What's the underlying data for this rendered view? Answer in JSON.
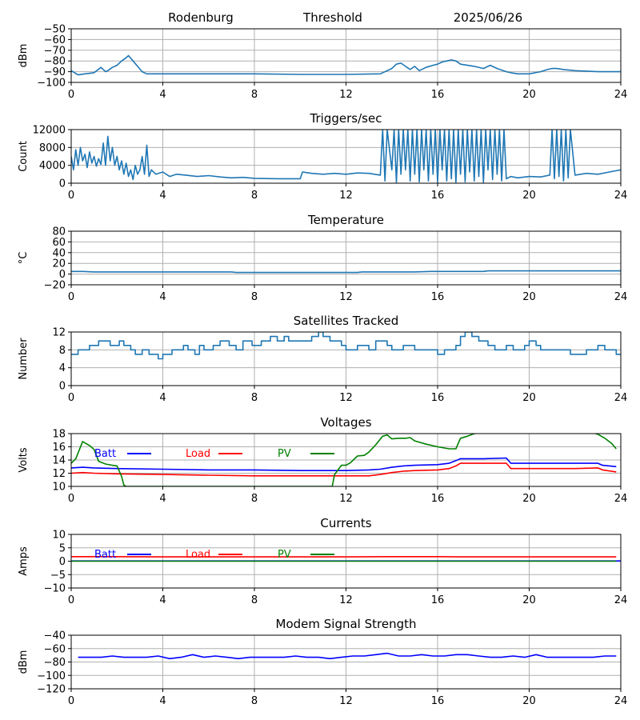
{
  "header": {
    "station": "Rodenburg",
    "subject": "Threshold",
    "date": "2025/06/26"
  },
  "chart_data": [
    {
      "type": "line",
      "id": "threshold",
      "title": "",
      "ylabel": "dBm",
      "xlim": [
        0,
        24
      ],
      "ylim": [
        -100,
        -50
      ],
      "xticks": [
        0,
        4,
        8,
        12,
        16,
        20,
        24
      ],
      "yticks": [
        -100,
        -90,
        -80,
        -70,
        -60,
        -50
      ],
      "grid": true,
      "series": [
        {
          "color": "#1f77b4",
          "x": [
            0,
            0.3,
            0.6,
            1,
            1.3,
            1.5,
            1.6,
            1.8,
            2,
            2.2,
            2.4,
            2.5,
            2.7,
            2.9,
            3.1,
            3.3,
            4,
            6,
            8,
            10,
            12,
            13.5,
            14,
            14.2,
            14.4,
            14.6,
            14.8,
            15,
            15.2,
            15.5,
            15.8,
            16,
            16.2,
            16.4,
            16.6,
            16.8,
            17,
            17.3,
            17.6,
            18,
            18.3,
            18.6,
            19,
            19.2,
            19.5,
            20,
            20.5,
            20.8,
            21,
            21.2,
            21.5,
            22,
            23,
            24
          ],
          "y": [
            -89,
            -93,
            -92,
            -91,
            -86,
            -90,
            -89,
            -86,
            -84,
            -80,
            -77,
            -75,
            -80,
            -85,
            -90,
            -92,
            -92,
            -92,
            -92,
            -92.5,
            -92.5,
            -92,
            -87,
            -83,
            -82,
            -85,
            -88,
            -85,
            -89,
            -86,
            -84,
            -83,
            -81,
            -80,
            -79,
            -80,
            -83,
            -84,
            -85,
            -87,
            -84,
            -87,
            -90,
            -91,
            -92,
            -92,
            -90,
            -88,
            -87,
            -87,
            -88,
            -89,
            -90,
            -90
          ]
        }
      ]
    },
    {
      "type": "line",
      "id": "triggers",
      "title": "Triggers/sec",
      "ylabel": "Count",
      "xlim": [
        0,
        24
      ],
      "ylim": [
        0,
        12000
      ],
      "xticks": [
        0,
        4,
        8,
        12,
        16,
        20,
        24
      ],
      "yticks": [
        0,
        4000,
        8000,
        12000
      ],
      "grid": true,
      "series": [
        {
          "color": "#1f77b4",
          "x": [
            0,
            0.1,
            0.2,
            0.3,
            0.4,
            0.5,
            0.6,
            0.7,
            0.8,
            0.9,
            1,
            1.1,
            1.2,
            1.3,
            1.4,
            1.5,
            1.6,
            1.7,
            1.8,
            1.9,
            2,
            2.1,
            2.2,
            2.3,
            2.4,
            2.5,
            2.6,
            2.7,
            2.8,
            2.9,
            3,
            3.1,
            3.2,
            3.3,
            3.4,
            3.5,
            3.7,
            4,
            4.3,
            4.6,
            5,
            5.5,
            6,
            6.5,
            7,
            7.5,
            8,
            9,
            10,
            10.1,
            10.5,
            11,
            11.5,
            12,
            12.5,
            13,
            13.5,
            13.6,
            13.7,
            13.8,
            14,
            14.1,
            14.2,
            14.3,
            14.4,
            14.5,
            14.6,
            14.7,
            14.8,
            14.9,
            15,
            15.1,
            15.2,
            15.3,
            15.4,
            15.5,
            15.6,
            15.7,
            15.8,
            15.9,
            16,
            16.1,
            16.2,
            16.3,
            16.4,
            16.5,
            16.6,
            16.7,
            16.8,
            16.9,
            17,
            17.1,
            17.2,
            17.3,
            17.4,
            17.5,
            17.6,
            17.7,
            17.8,
            17.9,
            18,
            18.1,
            18.2,
            18.3,
            18.4,
            18.5,
            18.6,
            18.7,
            18.8,
            18.9,
            19,
            19.2,
            19.5,
            20,
            20.5,
            20.9,
            21,
            21.1,
            21.2,
            21.3,
            21.4,
            21.5,
            21.6,
            21.7,
            21.8,
            22,
            22.5,
            23,
            23.5,
            23.8,
            24
          ],
          "y": [
            6000,
            3000,
            7500,
            4000,
            8000,
            5000,
            6500,
            3500,
            7000,
            4500,
            6000,
            3800,
            5500,
            4200,
            9000,
            4000,
            10500,
            5000,
            8000,
            4000,
            6000,
            3000,
            5000,
            2000,
            4500,
            1500,
            3000,
            800,
            4000,
            2000,
            3000,
            6000,
            2000,
            8500,
            1500,
            3000,
            2000,
            2500,
            1500,
            2000,
            1800,
            1500,
            1700,
            1400,
            1200,
            1300,
            1100,
            1000,
            1000,
            2500,
            2200,
            2000,
            2200,
            2000,
            2300,
            2200,
            1800,
            12000,
            500,
            12000,
            3000,
            12000,
            200,
            12000,
            2000,
            12000,
            3000,
            12000,
            500,
            12000,
            2000,
            12000,
            300,
            12000,
            3000,
            12000,
            500,
            12000,
            2000,
            12000,
            200,
            12000,
            3000,
            12000,
            500,
            12000,
            1000,
            12000,
            200,
            12000,
            2000,
            12000,
            300,
            12000,
            2500,
            12000,
            500,
            12000,
            1500,
            12000,
            200,
            12000,
            3000,
            12000,
            800,
            12000,
            2000,
            12000,
            500,
            12000,
            1000,
            1500,
            1200,
            1500,
            1400,
            1800,
            12000,
            1000,
            12000,
            1500,
            12000,
            500,
            12000,
            1200,
            12000,
            1800,
            2200,
            2000,
            2500,
            2800,
            3000
          ]
        }
      ]
    },
    {
      "type": "line",
      "id": "temperature",
      "title": "Temperature",
      "ylabel": "°C",
      "xlim": [
        0,
        24
      ],
      "ylim": [
        -20,
        80
      ],
      "xticks": [
        0,
        4,
        8,
        12,
        16,
        20,
        24
      ],
      "yticks": [
        -20,
        0,
        20,
        40,
        60,
        80
      ],
      "grid": true,
      "series": [
        {
          "color": "#1f77b4",
          "x": [
            0,
            0.5,
            1,
            4,
            7,
            7.2,
            10,
            12.5,
            12.7,
            15,
            15.7,
            18,
            18.2,
            20,
            24
          ],
          "y": [
            5,
            5,
            4,
            4,
            4,
            3,
            3,
            3,
            4,
            4,
            5,
            5,
            6,
            6,
            6
          ]
        }
      ]
    },
    {
      "type": "line",
      "id": "satellites",
      "title": "Satellites Tracked",
      "ylabel": "Number",
      "xlim": [
        0,
        24
      ],
      "ylim": [
        0,
        12
      ],
      "xticks": [
        0,
        4,
        8,
        12,
        16,
        20,
        24
      ],
      "yticks": [
        0,
        4,
        8,
        12
      ],
      "grid": true,
      "series": [
        {
          "color": "#1f77b4",
          "step": true,
          "x": [
            0,
            0.3,
            0.8,
            1.2,
            1.7,
            2.1,
            2.3,
            2.6,
            2.8,
            3.1,
            3.4,
            3.8,
            4,
            4.4,
            4.9,
            5.1,
            5.4,
            5.6,
            5.8,
            6.2,
            6.5,
            6.9,
            7.2,
            7.5,
            7.9,
            8.3,
            8.7,
            9,
            9.3,
            9.5,
            10,
            10.5,
            10.8,
            11,
            11.3,
            11.8,
            12,
            12.5,
            13,
            13.3,
            13.8,
            14,
            14.5,
            15,
            15.3,
            16,
            16.3,
            16.8,
            17,
            17.2,
            17.5,
            17.8,
            18.2,
            18.5,
            19,
            19.3,
            19.8,
            20,
            20.3,
            20.5,
            21.5,
            21.8,
            22.5,
            23,
            23.3,
            23.8
          ],
          "y": [
            7,
            8,
            9,
            10,
            9,
            10,
            9,
            8,
            7,
            8,
            7,
            6,
            7,
            8,
            9,
            8,
            7,
            9,
            8,
            9,
            10,
            9,
            8,
            10,
            9,
            10,
            11,
            10,
            11,
            10,
            10,
            11,
            12,
            11,
            10,
            9,
            8,
            9,
            8,
            10,
            9,
            8,
            9,
            8,
            8,
            7,
            8,
            9,
            11,
            12,
            11,
            10,
            9,
            8,
            9,
            8,
            9,
            10,
            9,
            8,
            8,
            7,
            8,
            9,
            8,
            7
          ]
        }
      ]
    },
    {
      "type": "line",
      "id": "voltages",
      "title": "Voltages",
      "ylabel": "Volts",
      "xlim": [
        0,
        24
      ],
      "ylim": [
        10,
        18
      ],
      "xticks": [
        0,
        4,
        8,
        12,
        16,
        20,
        24
      ],
      "yticks": [
        10,
        12,
        14,
        16,
        18
      ],
      "grid": true,
      "legend": [
        "Batt",
        "Load",
        "PV"
      ],
      "legend_placement": "top-left",
      "series": [
        {
          "name": "Batt",
          "color": "#0000ff",
          "x": [
            0,
            0.5,
            1,
            2,
            4,
            6,
            8,
            10,
            12,
            13,
            13.5,
            14,
            14.5,
            15,
            16,
            16.5,
            16.8,
            17,
            18,
            19,
            19.2,
            20,
            21,
            22,
            23,
            23.2,
            23.8
          ],
          "y": [
            12.8,
            12.9,
            12.8,
            12.7,
            12.6,
            12.5,
            12.5,
            12.4,
            12.4,
            12.5,
            12.6,
            12.9,
            13.1,
            13.2,
            13.3,
            13.5,
            13.9,
            14.2,
            14.2,
            14.3,
            13.5,
            13.5,
            13.5,
            13.5,
            13.5,
            13.2,
            13.0
          ]
        },
        {
          "name": "Load",
          "color": "#ff0000",
          "x": [
            0,
            0.5,
            1,
            2,
            4,
            6,
            8,
            10,
            12,
            13,
            13.5,
            14,
            14.5,
            15,
            16,
            16.5,
            16.8,
            17,
            18,
            19,
            19.2,
            20,
            21,
            22,
            23,
            23.2,
            23.8
          ],
          "y": [
            12.0,
            12.1,
            12.0,
            11.9,
            11.8,
            11.7,
            11.6,
            11.6,
            11.6,
            11.6,
            11.8,
            12.1,
            12.3,
            12.4,
            12.5,
            12.7,
            13.1,
            13.5,
            13.5,
            13.5,
            12.7,
            12.7,
            12.7,
            12.7,
            12.8,
            12.5,
            12.2
          ]
        },
        {
          "name": "PV",
          "color": "#008000",
          "x": [
            0,
            0.2,
            0.5,
            0.8,
            1,
            1.2,
            1.5,
            1.8,
            2,
            2.2,
            2.3,
            2.4,
            11.4,
            11.5,
            11.8,
            12,
            12.2,
            12.5,
            12.8,
            13,
            13.3,
            13.6,
            13.8,
            14,
            14.3,
            14.6,
            14.8,
            15,
            15.5,
            16,
            16.5,
            16.8,
            17,
            17.3,
            17.6,
            17.9,
            18.2,
            22.8,
            23,
            23.3,
            23.6,
            23.8
          ],
          "y": [
            13.5,
            14.2,
            16.8,
            16.2,
            15.6,
            13.8,
            13.4,
            13.2,
            13.1,
            11.5,
            10.2,
            10,
            10,
            11.8,
            13.2,
            13.2,
            13.6,
            14.6,
            14.7,
            15.2,
            16.3,
            17.6,
            17.8,
            17.2,
            17.3,
            17.3,
            17.4,
            16.9,
            16.4,
            16.0,
            15.7,
            15.7,
            17.3,
            17.6,
            18.0,
            18.1,
            18.1,
            18.1,
            17.9,
            17.3,
            16.5,
            15.7
          ]
        }
      ]
    },
    {
      "type": "line",
      "id": "currents",
      "title": "Currents",
      "ylabel": "Amps",
      "xlim": [
        0,
        24
      ],
      "ylim": [
        -10,
        10
      ],
      "xticks": [
        0,
        4,
        8,
        12,
        16,
        20,
        24
      ],
      "yticks": [
        -10,
        -5,
        0,
        5,
        10
      ],
      "grid": true,
      "legend": [
        "Batt",
        "Load",
        "PV"
      ],
      "legend_placement": "top-left",
      "series": [
        {
          "name": "Batt",
          "color": "#0000ff",
          "x": [
            0,
            24
          ],
          "y": [
            0.1,
            0.1
          ]
        },
        {
          "name": "Load",
          "color": "#ff0000",
          "x": [
            0,
            1,
            4,
            8,
            12,
            14,
            16,
            17,
            18,
            20,
            22,
            23.8
          ],
          "y": [
            1.7,
            1.7,
            1.6,
            1.6,
            1.6,
            1.7,
            1.7,
            1.6,
            1.6,
            1.6,
            1.6,
            1.6
          ]
        },
        {
          "name": "PV",
          "color": "#008000",
          "x": [
            0,
            23.8
          ],
          "y": [
            0,
            0
          ]
        }
      ]
    },
    {
      "type": "line",
      "id": "modem",
      "title": "Modem Signal Strength",
      "ylabel": "dBm",
      "xlim": [
        0,
        24
      ],
      "ylim": [
        -120,
        -40
      ],
      "xticks": [
        0,
        4,
        8,
        12,
        16,
        20,
        24
      ],
      "yticks": [
        -120,
        -100,
        -80,
        -60,
        -40
      ],
      "grid": true,
      "series": [
        {
          "color": "#0000ff",
          "x": [
            0.3,
            1.3,
            1.8,
            2.3,
            3.3,
            3.8,
            4.3,
            4.8,
            5.3,
            5.8,
            6.3,
            6.8,
            7.3,
            7.8,
            8.3,
            8.8,
            9.3,
            9.8,
            10.3,
            10.8,
            11.3,
            11.8,
            12.3,
            12.8,
            13.3,
            13.8,
            14.3,
            14.8,
            15.3,
            15.8,
            16.3,
            16.8,
            17.3,
            17.8,
            18.3,
            18.8,
            19.3,
            19.8,
            20.3,
            20.8,
            21.3,
            21.8,
            22.3,
            22.8,
            23.3,
            23.8
          ],
          "y": [
            -73,
            -73,
            -71,
            -73,
            -73,
            -71,
            -75,
            -73,
            -69,
            -73,
            -71,
            -73,
            -75,
            -73,
            -73,
            -73,
            -73,
            -71,
            -73,
            -73,
            -75,
            -73,
            -71,
            -71,
            -69,
            -67,
            -71,
            -71,
            -69,
            -71,
            -71,
            -69,
            -69,
            -71,
            -73,
            -73,
            -71,
            -73,
            -69,
            -73,
            -73,
            -73,
            -73,
            -73,
            -71,
            -71
          ]
        }
      ]
    }
  ]
}
